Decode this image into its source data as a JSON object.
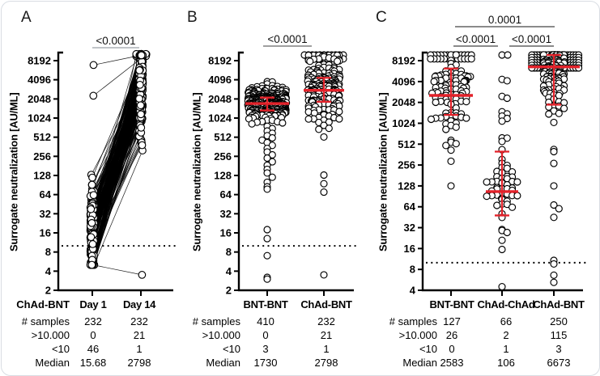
{
  "figure": {
    "background": "#ffffff",
    "border_color": "#d9dde3",
    "accent_red": "#e3222a",
    "axis_color": "#000000"
  },
  "panels": [
    {
      "label": "A",
      "ylabel": "Surrogate neutralization [AU/ML]",
      "table": {
        "row_header": "ChAd-BNT",
        "columns": [
          "Day 1",
          "Day 14"
        ],
        "rows": [
          {
            "label": "# samples",
            "values": [
              "232",
              "232"
            ]
          },
          {
            "label": ">10.000",
            "values": [
              "0",
              "21"
            ]
          },
          {
            "label": "<10",
            "values": [
              "46",
              "1"
            ]
          },
          {
            "label": "Median",
            "values": [
              "15.68",
              "2798"
            ]
          }
        ]
      }
    },
    {
      "label": "B",
      "ylabel": "Surrogate neutralization [AU/ML]",
      "table": {
        "row_header": "",
        "columns": [
          "BNT-BNT",
          "ChAd-BNT"
        ],
        "rows": [
          {
            "label": "# samples",
            "values": [
              "410",
              "232"
            ]
          },
          {
            "label": ">10.000",
            "values": [
              "0",
              "21"
            ]
          },
          {
            "label": "<10",
            "values": [
              "3",
              "1"
            ]
          },
          {
            "label": "Median",
            "values": [
              "1730",
              "2798"
            ]
          }
        ]
      }
    },
    {
      "label": "C",
      "ylabel": "Surrogate neutralization [AU/ML]",
      "table": {
        "row_header": "",
        "columns": [
          "BNT-BNT",
          "ChAd-ChAd",
          "ChAd-BNT"
        ],
        "rows": [
          {
            "label": "# samples",
            "values": [
              "127",
              "66",
              "250"
            ]
          },
          {
            "label": ">10.000",
            "values": [
              "26",
              "2",
              "115"
            ]
          },
          {
            "label": "<10",
            "values": [
              "0",
              "1",
              "3"
            ]
          },
          {
            "label": "Median",
            "values": [
              "2583",
              "106",
              "6673"
            ]
          }
        ]
      }
    }
  ],
  "chart_data": [
    {
      "panel": "A",
      "type": "scatter",
      "subtype": "paired-line-dotplot",
      "ylabel": "Surrogate neutralization [AU/ML]",
      "log_scale": "log2",
      "yticks": [
        2,
        4,
        8,
        16,
        32,
        64,
        128,
        256,
        512,
        1024,
        2048,
        4096,
        8192
      ],
      "ylim": [
        2,
        10000
      ],
      "cap_value": 10000,
      "detection_threshold": 10,
      "categories": [
        "Day 1",
        "Day 14"
      ],
      "significance": [
        {
          "label": "<0.0001",
          "between": [
            "Day 1",
            "Day 14"
          ]
        }
      ],
      "series": [
        {
          "name": "Day 1",
          "n": 232,
          "median": 15.68,
          "over_10000": 0,
          "under_10": 46,
          "dist": {
            "log2_mean": 3.97,
            "log2_sd": 1.25,
            "log2_clamp": [
              2.33,
              8.05
            ],
            "forced": [
              7000,
              2300
            ]
          }
        },
        {
          "name": "Day 14",
          "n": 232,
          "median": 2798,
          "over_10000": 21,
          "under_10": 1,
          "dist": {
            "log2_mean": 11.45,
            "log2_sd": 1.0,
            "log2_clamp": [
              8.0,
              13.28
            ],
            "forced": [
              3.5
            ]
          }
        }
      ]
    },
    {
      "panel": "B",
      "type": "scatter",
      "subtype": "column-swarm",
      "ylabel": "Surrogate neutralization [AU/ML]",
      "log_scale": "log2",
      "yticks": [
        2,
        4,
        8,
        16,
        32,
        64,
        128,
        256,
        512,
        1024,
        2048,
        4096,
        8192
      ],
      "ylim": [
        2,
        10000
      ],
      "cap_value": 10000,
      "detection_threshold": 10,
      "categories": [
        "BNT-BNT",
        "ChAd-BNT"
      ],
      "significance": [
        {
          "label": "<0.0001",
          "between": [
            "BNT-BNT",
            "ChAd-BNT"
          ]
        }
      ],
      "series": [
        {
          "name": "BNT-BNT",
          "n": 410,
          "median": 1730,
          "q1": 1350,
          "q3": 2150,
          "over_10000": 0,
          "under_10": 3,
          "dist": {
            "log2_mean": 10.78,
            "log2_sd": 0.42,
            "log2_clamp": [
              9.35,
              11.9
            ],
            "forced": [
              950,
              830,
              760,
              700,
              640,
              590,
              540,
              500,
              460,
              420,
              380,
              340,
              300,
              270,
              240,
              210,
              185,
              160,
              140,
              120,
              100,
              85,
              78,
              18,
              13,
              7,
              3.2,
              3.0
            ]
          }
        },
        {
          "name": "ChAd-BNT",
          "n": 232,
          "median": 2798,
          "q1": 1850,
          "q3": 4400,
          "over_10000": 21,
          "under_10": 1,
          "dist": {
            "log2_mean": 11.55,
            "log2_sd": 0.95,
            "log2_clamp": [
              6.9,
              13.28
            ],
            "forced": [
              3.5,
              70,
              95,
              130
            ]
          }
        }
      ]
    },
    {
      "panel": "C",
      "type": "scatter",
      "subtype": "column-swarm",
      "ylabel": "Surrogate neutralization [AU/ML]",
      "log_scale": "log2",
      "yticks": [
        4,
        8,
        16,
        32,
        64,
        128,
        256,
        512,
        1024,
        2048,
        4096,
        8192
      ],
      "ylim": [
        4,
        10000
      ],
      "cap_value": 10000,
      "detection_threshold": 10,
      "categories": [
        "BNT-BNT",
        "ChAd-ChAd",
        "ChAd-BNT"
      ],
      "significance": [
        {
          "label": "0.0001",
          "between": [
            "BNT-BNT",
            "ChAd-BNT"
          ],
          "level": 2
        },
        {
          "label": "<0.0001",
          "between": [
            "BNT-BNT",
            "ChAd-ChAd"
          ],
          "level": 1
        },
        {
          "label": "<0.0001",
          "between": [
            "ChAd-ChAd",
            "ChAd-BNT"
          ],
          "level": 1
        }
      ],
      "series": [
        {
          "name": "BNT-BNT",
          "n": 127,
          "median": 2583,
          "q1": 1350,
          "q3": 6300,
          "over_10000": 26,
          "under_10": 0,
          "dist": {
            "log2_mean": 11.35,
            "log2_sd": 0.85,
            "log2_clamp": [
              8.2,
              13.28
            ],
            "forced": [
              128,
              290,
              420,
              520,
              545
            ]
          }
        },
        {
          "name": "ChAd-ChAd",
          "n": 66,
          "median": 106,
          "q1": 48,
          "q3": 400,
          "over_10000": 2,
          "under_10": 1,
          "dist": {
            "log2_mean": 6.7,
            "log2_sd": 1.0,
            "log2_clamp": [
              4.35,
              9.3
            ],
            "forced": [
              4.5,
              15.5,
              21,
              4400,
              4200,
              2500,
              2350,
              1500,
              1400,
              1300,
              1200,
              1100
            ]
          }
        },
        {
          "name": "ChAd-BNT",
          "n": 250,
          "median": 6673,
          "q1": 1900,
          "q3": 10000,
          "over_10000": 115,
          "under_10": 3,
          "dist": {
            "log2_mean": 12.55,
            "log2_sd": 0.85,
            "log2_clamp": [
              8.6,
              13.28
            ],
            "forced": [
              5.2,
              6.6,
              9.6,
              10.8,
              45,
              60,
              68,
              128,
              270,
              400,
              430
            ]
          }
        }
      ]
    }
  ]
}
